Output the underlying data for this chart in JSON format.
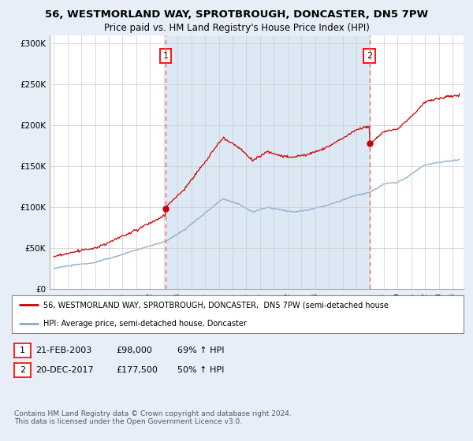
{
  "title": "56, WESTMORLAND WAY, SPROTBROUGH, DONCASTER, DN5 7PW",
  "subtitle": "Price paid vs. HM Land Registry's House Price Index (HPI)",
  "background_color": "#e8eef8",
  "plot_bg_color": "#ffffff",
  "shaded_region_color": "#dde8f5",
  "ytick_labels": [
    "£0",
    "£50K",
    "£100K",
    "£150K",
    "£200K",
    "£250K",
    "£300K"
  ],
  "yticks": [
    0,
    50000,
    100000,
    150000,
    200000,
    250000,
    300000
  ],
  "ylim": [
    0,
    310000
  ],
  "xlim_left": 1994.7,
  "xlim_right": 2024.8,
  "sale1_date_x": 2003.13,
  "sale1_price": 98000,
  "sale2_date_x": 2017.97,
  "sale2_price": 177500,
  "legend_line1": "56, WESTMORLAND WAY, SPROTBROUGH, DONCASTER,  DN5 7PW (semi-detached house",
  "legend_line2": "HPI: Average price, semi-detached house, Doncaster",
  "property_line_color": "#cc0000",
  "hpi_line_color": "#88aacc",
  "vline_color": "#dd6666",
  "marker_color": "#cc0000",
  "grid_color": "#cccccc",
  "copyright": "Contains HM Land Registry data © Crown copyright and database right 2024.\nThis data is licensed under the Open Government Licence v3.0."
}
